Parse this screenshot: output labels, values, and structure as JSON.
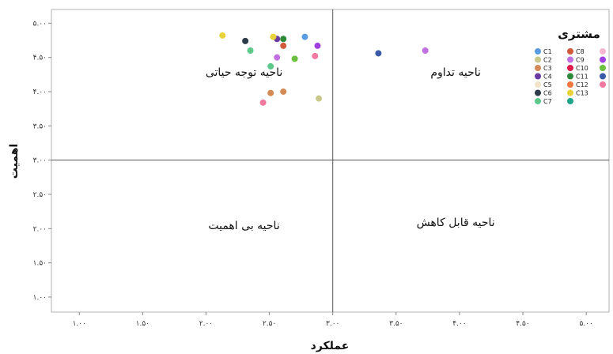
{
  "chart_data": {
    "type": "scatter",
    "xlabel": "عملکرد",
    "ylabel": "اهمیت",
    "xlim": [
      0.78,
      5.18
    ],
    "ylim": [
      0.78,
      5.2
    ],
    "x_ticks": [
      1.0,
      1.5,
      2.0,
      2.5,
      3.0,
      3.5,
      4.0,
      4.5,
      5.0
    ],
    "y_ticks": [
      1.0,
      1.5,
      2.0,
      2.5,
      3.0,
      3.5,
      4.0,
      4.5,
      5.0
    ],
    "x_tick_labels": [
      "۱.۰۰",
      "۱.۵۰",
      "۲.۰۰",
      "۲.۵۰",
      "۳.۰۰",
      "۳.۵۰",
      "۴.۰۰",
      "۴.۵۰",
      "۵.۰۰"
    ],
    "y_tick_labels": [
      "۱.۰۰",
      "۱.۵۰",
      "۲.۰۰",
      "۲.۵۰",
      "۳.۰۰",
      "۳.۵۰",
      "۴.۰۰",
      "۴.۵۰",
      "۵.۰۰"
    ],
    "reference_lines": {
      "x": 3.0,
      "y": 3.0
    },
    "grid": false,
    "legend_title": "مشتری",
    "legend_position": "top-right",
    "regions": [
      {
        "label": "ناحیه توجه حیاتی",
        "x": 2.3,
        "y": 4.23
      },
      {
        "label": "ناحیه تداوم",
        "x": 3.97,
        "y": 4.23
      },
      {
        "label": "ناحیه بی اهمیت",
        "x": 2.3,
        "y": 1.99
      },
      {
        "label": "ناحیه قابل کاهش",
        "x": 3.97,
        "y": 2.04
      }
    ],
    "series": [
      {
        "name": "C1",
        "color": "#5b9be0",
        "points": [
          [
            2.78,
            4.8
          ]
        ]
      },
      {
        "name": "C2",
        "color": "#c8c98a",
        "points": [
          [
            2.89,
            3.9
          ]
        ]
      },
      {
        "name": "C3",
        "color": "#d48a55",
        "points": [
          [
            2.51,
            3.98
          ],
          [
            2.61,
            4.0
          ]
        ]
      },
      {
        "name": "C4",
        "color": "#6b3aa0",
        "points": [
          [
            2.56,
            4.77
          ]
        ]
      },
      {
        "name": "C5",
        "color": "#f0e4c8",
        "points": []
      },
      {
        "name": "C6",
        "color": "#2f3a4a",
        "points": [
          [
            2.31,
            4.74
          ]
        ]
      },
      {
        "name": "C7",
        "color": "#5cc98a",
        "points": [
          [
            2.35,
            4.6
          ],
          [
            2.51,
            4.37
          ]
        ]
      },
      {
        "name": "C8",
        "color": "#d05a3a",
        "points": [
          [
            2.61,
            4.67
          ]
        ]
      },
      {
        "name": "C9",
        "color": "#c070e0",
        "points": [
          [
            3.73,
            4.6
          ],
          [
            2.56,
            4.5
          ]
        ]
      },
      {
        "name": "C10",
        "color": "#e01a4a",
        "points": []
      },
      {
        "name": "C11",
        "color": "#2e8a3a",
        "points": [
          [
            2.61,
            4.77
          ]
        ]
      },
      {
        "name": "C12",
        "color": "#f07840",
        "points": []
      },
      {
        "name": "C13",
        "color": "#e8d23a",
        "points": [
          [
            2.13,
            4.82
          ],
          [
            2.53,
            4.8
          ]
        ]
      },
      {
        "name": "",
        "color": "#1fa58a",
        "points": []
      },
      {
        "name": "",
        "color": "#f5b8d0",
        "points": []
      },
      {
        "name": "",
        "color": "#a040e0",
        "points": [
          [
            2.88,
            4.67
          ]
        ]
      },
      {
        "name": "",
        "color": "#6cc040",
        "points": [
          [
            2.7,
            4.48
          ]
        ]
      },
      {
        "name": "",
        "color": "#3a5aa8",
        "points": [
          [
            3.36,
            4.56
          ]
        ]
      },
      {
        "name": "",
        "color": "#f07aa0",
        "points": [
          [
            2.45,
            3.84
          ],
          [
            2.86,
            4.52
          ]
        ]
      }
    ]
  }
}
